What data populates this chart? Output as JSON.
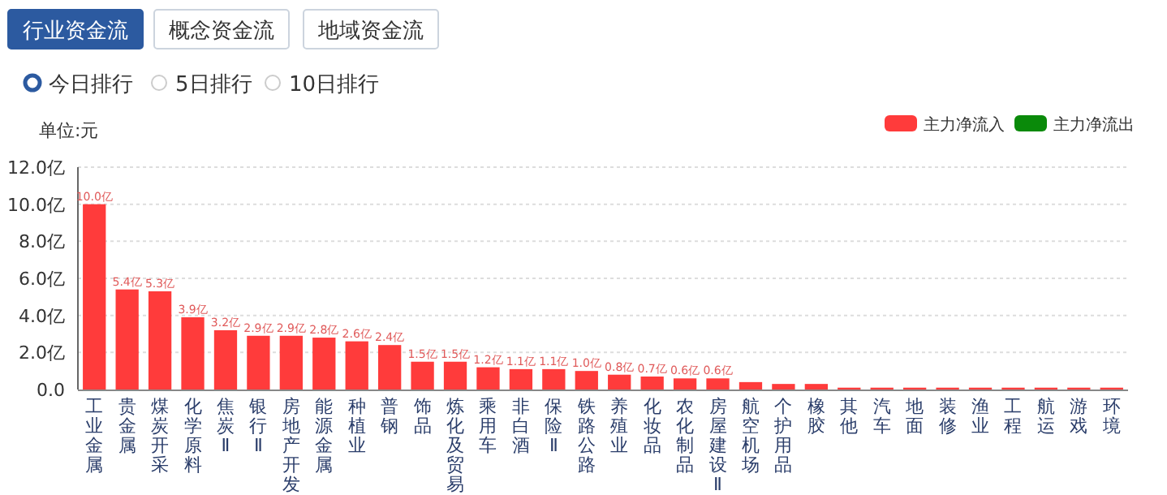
{
  "chart_data": {
    "type": "bar",
    "annotations": [
      "行业资金流",
      "概念资金流",
      "地域资金流",
      "今日排行",
      "5日排行",
      "10日排行"
    ],
    "ylabel": "单位:元",
    "categories": [
      "工业金属",
      "贵金属",
      "煤炭开采",
      "化学原料",
      "焦炭Ⅱ",
      "银行Ⅱ",
      "房地产开发",
      "能源金属",
      "种植业",
      "普钢",
      "饰品",
      "炼化及贸易",
      "乘用车",
      "非白酒",
      "保险Ⅱ",
      "铁路公路",
      "养殖业",
      "化妆品",
      "农化制品",
      "房屋建设Ⅱ",
      "航空机场",
      "个护用品",
      "橡胶",
      "其他",
      "汽车",
      "地面",
      "装修",
      "渔业",
      "工程",
      "航运",
      "游戏",
      "环境"
    ],
    "series": [
      {
        "name": "主力净流入",
        "color": "#ff3b3b",
        "values": [
          10.0,
          5.4,
          5.3,
          3.9,
          3.2,
          2.9,
          2.9,
          2.8,
          2.6,
          2.4,
          1.5,
          1.5,
          1.2,
          1.1,
          1.1,
          1.0,
          0.8,
          0.7,
          0.6,
          0.6,
          0.4,
          0.3,
          0.3,
          0.1,
          0.1,
          0.1,
          0.1,
          0.1,
          0.1,
          0.1,
          0.1,
          0.1
        ],
        "value_labels": [
          "10.0亿",
          "5.4亿",
          "5.3亿",
          "3.9亿",
          "3.2亿",
          "2.9亿",
          "2.9亿",
          "2.8亿",
          "2.6亿",
          "2.4亿",
          "1.5亿",
          "1.5亿",
          "1.2亿",
          "1.1亿",
          "1.1亿",
          "1.0亿",
          "0.8亿",
          "0.7亿",
          "0.6亿",
          "0.6亿",
          null,
          null,
          null,
          null,
          null,
          null,
          null,
          null,
          null,
          null,
          null,
          null
        ]
      },
      {
        "name": "主力净流出",
        "color": "#0a8a0a",
        "values": [
          null,
          null,
          null,
          null,
          null,
          null,
          null,
          null,
          null,
          null,
          null,
          null,
          null,
          null,
          null,
          null,
          null,
          null,
          null,
          null,
          null,
          null,
          null,
          null,
          null,
          null,
          null,
          null,
          null,
          null,
          null,
          null
        ]
      }
    ],
    "ylim": [
      0,
      12
    ],
    "yticks": [
      {
        "value": 0,
        "label": "0.0"
      },
      {
        "value": 2,
        "label": "2.0亿"
      },
      {
        "value": 4,
        "label": "4.0亿"
      },
      {
        "value": 6,
        "label": "6.0亿"
      },
      {
        "value": 8,
        "label": "8.0亿"
      },
      {
        "value": 10,
        "label": "10.0亿"
      },
      {
        "value": 12,
        "label": "12.0亿"
      }
    ],
    "grid": "y",
    "legend": "top right"
  }
}
